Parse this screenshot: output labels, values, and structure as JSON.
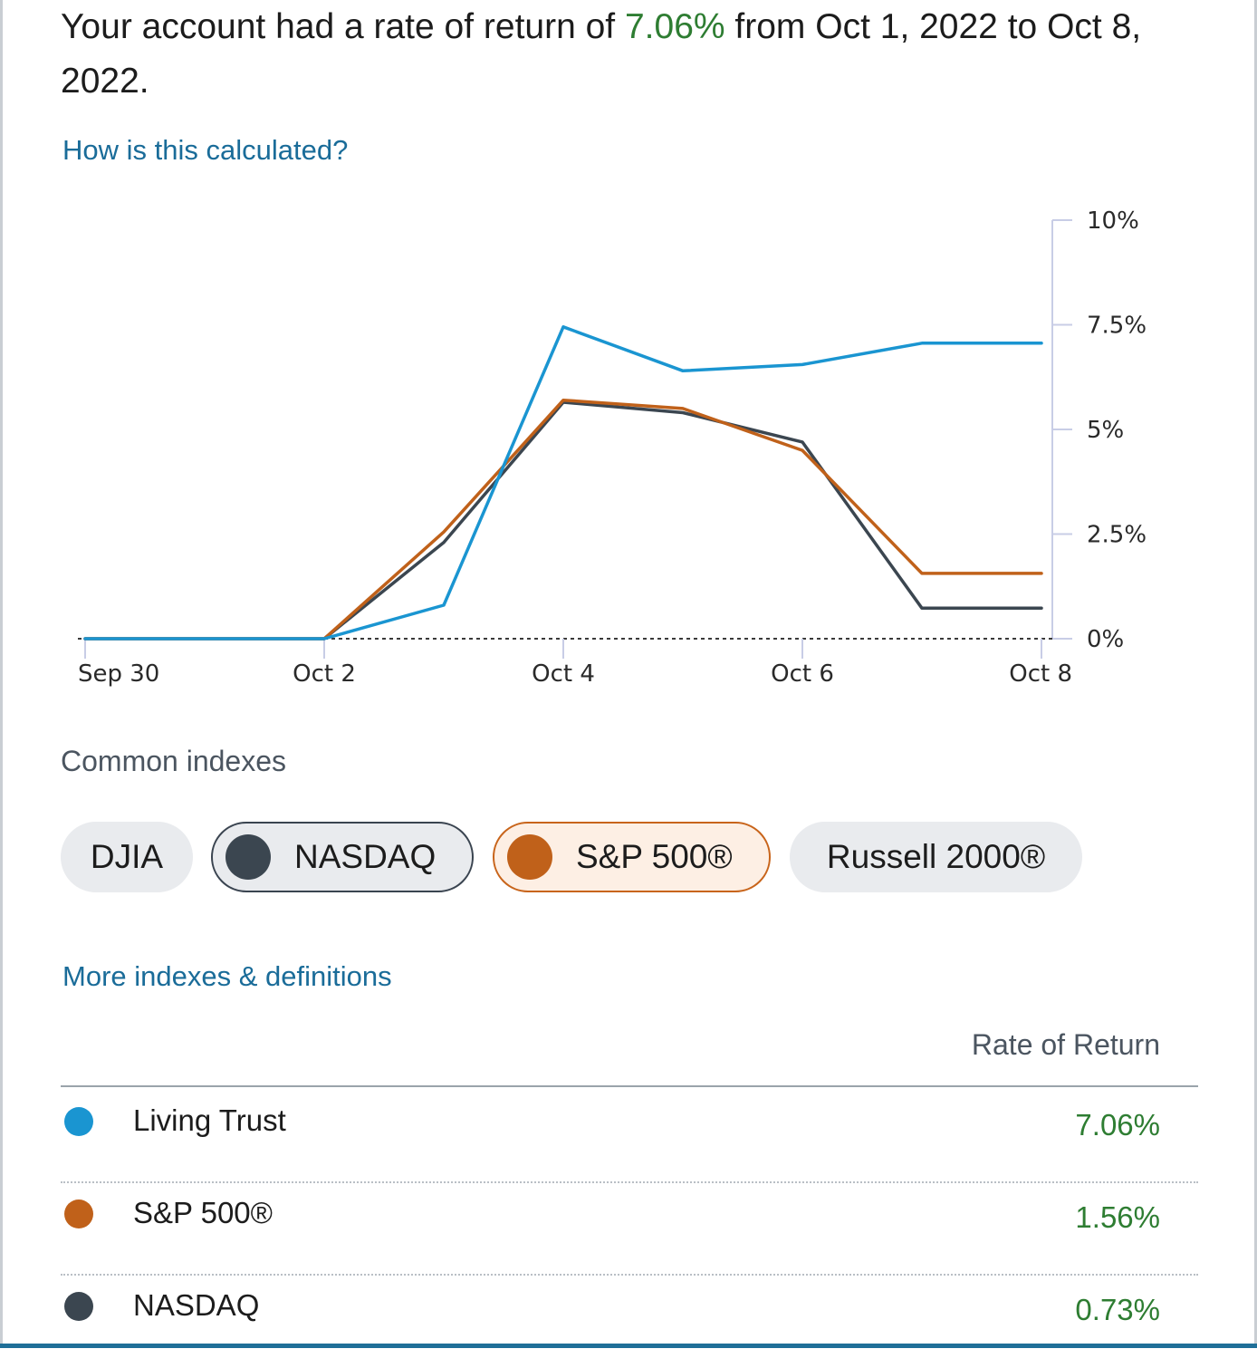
{
  "summary": {
    "prefix": "Your account had a rate of return of ",
    "rate": "7.06%",
    "suffix": " from Oct 1, 2022 to Oct 8, 2022."
  },
  "links": {
    "how_calculated": "How is this calculated?",
    "more_indexes": "More indexes & definitions"
  },
  "colors": {
    "account": "#1a95d1",
    "sp500": "#c0611a",
    "nasdaq": "#3b4650",
    "positive": "#2e7d32",
    "link": "#1a6c99"
  },
  "chart_data": {
    "type": "line",
    "title": "",
    "xlabel": "",
    "ylabel": "",
    "x_tick_labels": [
      "Sep 30",
      "Oct 2",
      "Oct 4",
      "Oct 6",
      "Oct 8"
    ],
    "y_tick_labels": [
      "0%",
      "2.5%",
      "5%",
      "7.5%",
      "10%"
    ],
    "y_ticks": [
      0,
      2.5,
      5,
      7.5,
      10
    ],
    "ylim": [
      0,
      10
    ],
    "x": [
      "Sep 30",
      "Oct 1",
      "Oct 2",
      "Oct 3",
      "Oct 4",
      "Oct 5",
      "Oct 6",
      "Oct 7",
      "Oct 8"
    ],
    "series": [
      {
        "name": "Living Trust",
        "color": "#1a95d1",
        "values": [
          0,
          0,
          0,
          0.8,
          7.45,
          6.4,
          6.55,
          7.06,
          7.06
        ]
      },
      {
        "name": "S&P 500®",
        "color": "#c0611a",
        "values": [
          0,
          0,
          0,
          2.55,
          5.7,
          5.5,
          4.5,
          1.56,
          1.56
        ]
      },
      {
        "name": "NASDAQ",
        "color": "#3b4650",
        "values": [
          0,
          0,
          0,
          2.3,
          5.65,
          5.4,
          4.7,
          0.73,
          0.73
        ]
      }
    ],
    "baseline": {
      "value": 0,
      "style": "dotted"
    }
  },
  "indexes": {
    "title": "Common indexes",
    "chips": [
      {
        "label": "DJIA",
        "selected": false
      },
      {
        "label": "NASDAQ",
        "selected": true
      },
      {
        "label": "S&P 500®",
        "selected": true
      },
      {
        "label": "Russell 2000®",
        "selected": false
      }
    ]
  },
  "returns_table": {
    "header": "Rate of Return",
    "rows": [
      {
        "name": "Living Trust",
        "value": "7.06%"
      },
      {
        "name": "S&P 500®",
        "value": "1.56%"
      },
      {
        "name": "NASDAQ",
        "value": "0.73%"
      }
    ]
  }
}
